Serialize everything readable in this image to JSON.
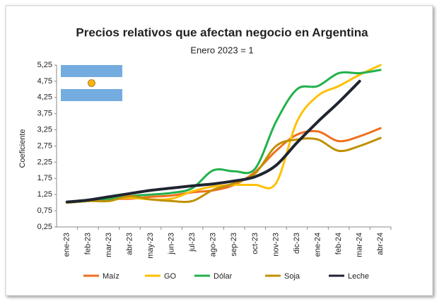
{
  "chart_data": {
    "type": "line",
    "title": "Precios relativos que afectan negocio en Argentina",
    "subtitle": "Enero 2023 = 1",
    "y_label": "Coeficiente",
    "categories": [
      "ene-23",
      "feb-23",
      "mar-23",
      "abr-23",
      "may-23",
      "jun-23",
      "jul-23",
      "ago-23",
      "sep-23",
      "oct-23",
      "nov-23",
      "dic-23",
      "ene-24",
      "feb-24",
      "mar-24",
      "abr-24"
    ],
    "series": [
      {
        "name": "Maíz",
        "color": "#f07020",
        "values": [
          1.02,
          1.07,
          1.12,
          1.12,
          1.18,
          1.22,
          1.32,
          1.38,
          1.55,
          1.95,
          2.6,
          3.1,
          3.2,
          2.9,
          3.05,
          3.3
        ]
      },
      {
        "name": "GO",
        "color": "#ffc000",
        "values": [
          1.0,
          1.05,
          1.1,
          1.15,
          1.1,
          1.12,
          1.35,
          1.5,
          1.55,
          1.55,
          1.6,
          3.5,
          4.3,
          4.6,
          4.95,
          5.25
        ]
      },
      {
        "name": "Dólar",
        "color": "#22b14c",
        "values": [
          1.0,
          1.05,
          1.1,
          1.2,
          1.25,
          1.3,
          1.45,
          2.0,
          1.97,
          2.05,
          3.5,
          4.5,
          4.6,
          5.0,
          5.0,
          5.1
        ]
      },
      {
        "name": "Soja",
        "color": "#c09000",
        "values": [
          1.0,
          1.05,
          1.05,
          1.2,
          1.1,
          1.05,
          1.05,
          1.4,
          1.6,
          1.9,
          2.75,
          2.95,
          2.95,
          2.6,
          2.75,
          3.0
        ]
      },
      {
        "name": "Leche",
        "color": "#1f2430",
        "values": [
          1.02,
          1.08,
          1.18,
          1.28,
          1.38,
          1.45,
          1.52,
          1.58,
          1.67,
          1.8,
          2.15,
          2.85,
          3.5,
          4.1,
          4.75,
          null
        ]
      }
    ],
    "ylim": [
      0.25,
      5.25
    ],
    "yticks": [
      {
        "value": 0.25,
        "label": "0,25"
      },
      {
        "value": 0.75,
        "label": "0,75"
      },
      {
        "value": 1.25,
        "label": "1,25"
      },
      {
        "value": 1.75,
        "label": "1,75"
      },
      {
        "value": 2.25,
        "label": "2,25"
      },
      {
        "value": 2.75,
        "label": "2,75"
      },
      {
        "value": 3.25,
        "label": "3,25"
      },
      {
        "value": 3.75,
        "label": "3,75"
      },
      {
        "value": 4.25,
        "label": "4,25"
      },
      {
        "value": 4.75,
        "label": "4,75"
      },
      {
        "value": 5.25,
        "label": "5,25"
      }
    ],
    "grid": false
  }
}
